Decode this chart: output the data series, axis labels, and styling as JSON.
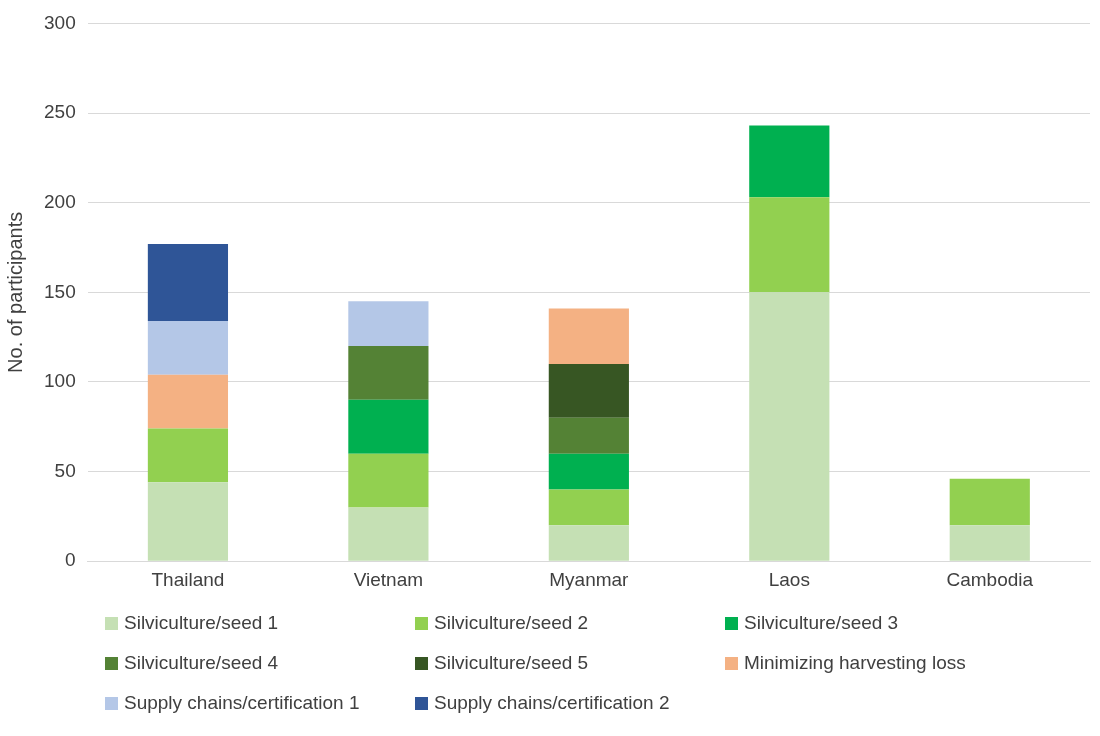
{
  "chart_data": {
    "type": "bar",
    "stacked": true,
    "ylabel": "No. of participants",
    "categories": [
      "Thailand",
      "Vietnam",
      "Myanmar",
      "Laos",
      "Cambodia"
    ],
    "series": [
      {
        "name": "Silviculture/seed 1",
        "color": "#c5e0b4",
        "values": [
          44,
          30,
          20,
          150,
          20
        ]
      },
      {
        "name": "Silviculture/seed 2",
        "color": "#92d050",
        "values": [
          30,
          30,
          20,
          53,
          26
        ]
      },
      {
        "name": "Silviculture/seed 3",
        "color": "#00b050",
        "values": [
          null,
          30,
          20,
          40,
          null
        ]
      },
      {
        "name": "Silviculture/seed 4",
        "color": "#548235",
        "values": [
          null,
          30,
          20,
          null,
          null
        ]
      },
      {
        "name": "Silviculture/seed 5",
        "color": "#375623",
        "values": [
          null,
          null,
          30,
          null,
          null
        ]
      },
      {
        "name": "Minimizing harvesting loss",
        "color": "#f4b183",
        "values": [
          30,
          null,
          31,
          null,
          null
        ]
      },
      {
        "name": "Supply chains/certification 1",
        "color": "#b4c7e7",
        "values": [
          30,
          25,
          null,
          null,
          null
        ]
      },
      {
        "name": "Supply chains/certification 2",
        "color": "#2f5597",
        "values": [
          43,
          null,
          null,
          null,
          null
        ]
      }
    ],
    "ylim": [
      0,
      300
    ],
    "yticks": [
      0,
      50,
      100,
      150,
      200,
      250,
      300
    ],
    "grid": "y",
    "legend": "bottom"
  }
}
